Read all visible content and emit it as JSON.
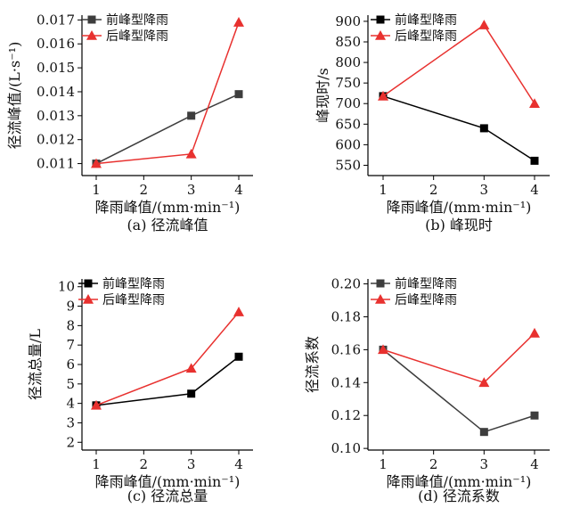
{
  "chart_data": [
    {
      "type": "line",
      "title": "(a) 径流峰值",
      "xlabel": "降雨峰值/(mm·min⁻¹)",
      "ylabel": "径流峰值/(L·s⁻¹)",
      "x": [
        1,
        3,
        4
      ],
      "xticks": [
        1,
        2,
        3,
        4
      ],
      "xlim": [
        0.7,
        4.3
      ],
      "ylim": [
        0.0105,
        0.0172
      ],
      "yticks": [
        0.011,
        0.012,
        0.013,
        0.014,
        0.015,
        0.016,
        0.017
      ],
      "ytick_labels": [
        "0.011",
        "0.012",
        "0.013",
        "0.014",
        "0.015",
        "0.016",
        "0.017"
      ],
      "series": [
        {
          "name": "前峰型降雨",
          "color": "#3d3d3d",
          "marker": "square",
          "values": [
            0.011,
            0.013,
            0.0139
          ]
        },
        {
          "name": "后峰型降雨",
          "color": "#e8312f",
          "marker": "triangle",
          "values": [
            0.011,
            0.0114,
            0.0169
          ]
        }
      ]
    },
    {
      "type": "line",
      "title": "(b) 峰现时",
      "xlabel": "降雨峰值/(mm·min⁻¹)",
      "ylabel": "峰现时/s",
      "x": [
        1,
        3,
        4
      ],
      "xticks": [
        1,
        2,
        3,
        4
      ],
      "xlim": [
        0.7,
        4.3
      ],
      "ylim": [
        525,
        915
      ],
      "yticks": [
        550,
        600,
        650,
        700,
        750,
        800,
        850,
        900
      ],
      "ytick_labels": [
        "550",
        "600",
        "650",
        "700",
        "750",
        "800",
        "850",
        "900"
      ],
      "series": [
        {
          "name": "前峰型降雨",
          "color": "#000000",
          "marker": "square",
          "values": [
            718,
            640,
            561
          ]
        },
        {
          "name": "后峰型降雨",
          "color": "#e8312f",
          "marker": "triangle",
          "values": [
            718,
            891,
            700
          ]
        }
      ]
    },
    {
      "type": "line",
      "title": "(c) 径流总量",
      "xlabel": "降雨峰值/(mm·min⁻¹)",
      "ylabel": "径流总量/L",
      "x": [
        1,
        3,
        4
      ],
      "xticks": [
        1,
        2,
        3,
        4
      ],
      "xlim": [
        0.7,
        4.3
      ],
      "ylim": [
        1.6,
        10.4
      ],
      "yticks": [
        2,
        3,
        4,
        5,
        6,
        7,
        8,
        9,
        10
      ],
      "ytick_labels": [
        "2",
        "3",
        "4",
        "5",
        "6",
        "7",
        "8",
        "9",
        "10"
      ],
      "series": [
        {
          "name": "前峰型降雨",
          "color": "#000000",
          "marker": "square",
          "values": [
            3.9,
            4.5,
            6.4
          ]
        },
        {
          "name": "后峰型降雨",
          "color": "#e8312f",
          "marker": "triangle",
          "values": [
            3.9,
            5.8,
            8.7
          ]
        }
      ]
    },
    {
      "type": "line",
      "title": "(d) 径流系数",
      "xlabel": "降雨峰值/(mm·min⁻¹)",
      "ylabel": "径流系数",
      "x": [
        1,
        3,
        4
      ],
      "xticks": [
        1,
        2,
        3,
        4
      ],
      "xlim": [
        0.7,
        4.3
      ],
      "ylim": [
        0.099,
        0.203
      ],
      "yticks": [
        0.1,
        0.12,
        0.14,
        0.16,
        0.18,
        0.2
      ],
      "ytick_labels": [
        "0.10",
        "0.12",
        "0.14",
        "0.16",
        "0.18",
        "0.20"
      ],
      "series": [
        {
          "name": "前峰型降雨",
          "color": "#3d3d3d",
          "marker": "square",
          "values": [
            0.16,
            0.11,
            0.12
          ]
        },
        {
          "name": "后峰型降雨",
          "color": "#e8312f",
          "marker": "triangle",
          "values": [
            0.16,
            0.14,
            0.17
          ]
        }
      ]
    }
  ]
}
